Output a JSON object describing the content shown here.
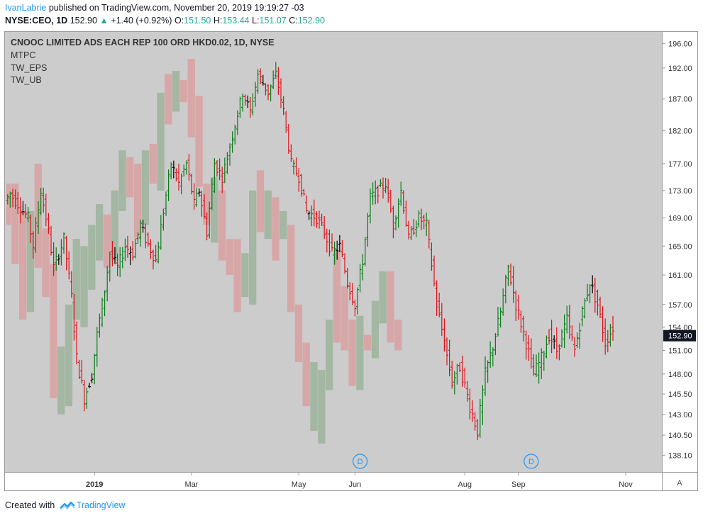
{
  "header": {
    "author": "IvanLabrie",
    "published_text": "published on TradingView.com, November 20, 2019 19:19:27 -03",
    "symbol": "NYSE:CEO, 1D",
    "last_value": "152.90",
    "change_arrow": "▲",
    "change": "+1.40 (+0.92%)",
    "o_label": "O:",
    "o_value": "151.50",
    "h_label": "H:",
    "h_value": "153.44",
    "l_label": "L:",
    "l_value": "151.07",
    "c_label": "C:",
    "c_value": "152.90"
  },
  "legend": {
    "title": "CNOOC LIMITED ADS EACH REP 100 ORD HKD0.02, 1D, NYSE",
    "studies": [
      "MTPC",
      "TW_EPS",
      "TW_UB"
    ]
  },
  "footer": {
    "created_with": "Created with",
    "brand": "TradingView"
  },
  "colors": {
    "background": "#cccccc",
    "up": "#0a7d1a",
    "down": "#e0111b",
    "neutral": "#000000",
    "up_box": "#9bb39b",
    "down_box": "#d8a0a0",
    "price_label_bg": "#131722",
    "event_marker": "#2196f3"
  },
  "chart_data": {
    "type": "ohlc_bar",
    "title": "CNOOC LIMITED ADS EACH REP 100 ORD HKD0.02, 1D, NYSE",
    "last_price_label": "152.90",
    "ylim": [
      136.5,
      197.5
    ],
    "y_scale": "log",
    "y_ticks": [
      196.0,
      192.0,
      187.0,
      182.0,
      177.0,
      173.0,
      169.0,
      165.0,
      161.0,
      157.0,
      154.0,
      151.0,
      148.0,
      145.5,
      143.0,
      140.5,
      138.1
    ],
    "x_ticks": [
      {
        "label": "2019",
        "bar": 34
      },
      {
        "label": "Mar",
        "bar": 72
      },
      {
        "label": "May",
        "bar": 114
      },
      {
        "label": "Jun",
        "bar": 136
      },
      {
        "label": "Aug",
        "bar": 179
      },
      {
        "label": "Sep",
        "bar": 200
      },
      {
        "label": "Nov",
        "bar": 242
      }
    ],
    "event_markers": [
      {
        "label": "D",
        "bar": 138
      },
      {
        "label": "D",
        "bar": 205
      }
    ],
    "right_corner_button": "A",
    "bar_count": 255,
    "segments": [
      {
        "from": 0,
        "to": 2,
        "open": 171.5,
        "close": 172.5
      },
      {
        "from": 2,
        "to": 9,
        "open": 172.5,
        "close": 169.0
      },
      {
        "from": 9,
        "to": 11,
        "open": 169.0,
        "close": 165.0
      },
      {
        "from": 11,
        "to": 14,
        "open": 165.0,
        "close": 173.0
      },
      {
        "from": 14,
        "to": 17,
        "open": 173.0,
        "close": 167.0
      },
      {
        "from": 17,
        "to": 19,
        "open": 167.0,
        "close": 162.0
      },
      {
        "from": 19,
        "to": 23,
        "open": 162.0,
        "close": 166.0
      },
      {
        "from": 23,
        "to": 26,
        "open": 166.0,
        "close": 158.0
      },
      {
        "from": 26,
        "to": 28,
        "open": 158.0,
        "close": 150.0
      },
      {
        "from": 28,
        "to": 31,
        "open": 150.0,
        "close": 145.0
      },
      {
        "from": 31,
        "to": 34,
        "open": 145.0,
        "close": 148.0
      },
      {
        "from": 34,
        "to": 36,
        "open": 148.0,
        "close": 153.0
      },
      {
        "from": 36,
        "to": 39,
        "open": 153.0,
        "close": 159.0
      },
      {
        "from": 39,
        "to": 41,
        "open": 159.0,
        "close": 164.0
      },
      {
        "from": 41,
        "to": 44,
        "open": 164.0,
        "close": 162.0
      },
      {
        "from": 44,
        "to": 47,
        "open": 162.0,
        "close": 165.0
      },
      {
        "from": 47,
        "to": 50,
        "open": 165.0,
        "close": 164.0
      },
      {
        "from": 50,
        "to": 53,
        "open": 164.0,
        "close": 168.0
      },
      {
        "from": 53,
        "to": 55,
        "open": 168.0,
        "close": 166.0
      },
      {
        "from": 55,
        "to": 59,
        "open": 166.0,
        "close": 163.0
      },
      {
        "from": 59,
        "to": 62,
        "open": 163.0,
        "close": 170.0
      },
      {
        "from": 62,
        "to": 65,
        "open": 170.0,
        "close": 177.0
      },
      {
        "from": 65,
        "to": 68,
        "open": 177.0,
        "close": 174.0
      },
      {
        "from": 68,
        "to": 71,
        "open": 174.0,
        "close": 177.0
      },
      {
        "from": 71,
        "to": 74,
        "open": 177.0,
        "close": 171.0
      },
      {
        "from": 74,
        "to": 76,
        "open": 171.0,
        "close": 173.0
      },
      {
        "from": 76,
        "to": 79,
        "open": 173.0,
        "close": 167.0
      },
      {
        "from": 79,
        "to": 82,
        "open": 167.0,
        "close": 177.0
      },
      {
        "from": 82,
        "to": 85,
        "open": 177.0,
        "close": 175.0
      },
      {
        "from": 85,
        "to": 87,
        "open": 175.0,
        "close": 178.0
      },
      {
        "from": 87,
        "to": 90,
        "open": 178.0,
        "close": 183.0
      },
      {
        "from": 90,
        "to": 93,
        "open": 183.0,
        "close": 188.0
      },
      {
        "from": 93,
        "to": 96,
        "open": 188.0,
        "close": 185.0
      },
      {
        "from": 96,
        "to": 99,
        "open": 185.0,
        "close": 191.0
      },
      {
        "from": 99,
        "to": 103,
        "open": 191.0,
        "close": 188.0
      },
      {
        "from": 103,
        "to": 106,
        "open": 188.0,
        "close": 191.0
      },
      {
        "from": 106,
        "to": 109,
        "open": 191.0,
        "close": 185.0
      },
      {
        "from": 109,
        "to": 112,
        "open": 185.0,
        "close": 177.0
      },
      {
        "from": 112,
        "to": 115,
        "open": 177.0,
        "close": 175.0
      },
      {
        "from": 115,
        "to": 118,
        "open": 175.0,
        "close": 170.0
      },
      {
        "from": 118,
        "to": 122,
        "open": 170.0,
        "close": 169.0
      },
      {
        "from": 122,
        "to": 125,
        "open": 169.0,
        "close": 167.0
      },
      {
        "from": 125,
        "to": 128,
        "open": 167.0,
        "close": 164.0
      },
      {
        "from": 128,
        "to": 131,
        "open": 164.0,
        "close": 165.0
      },
      {
        "from": 131,
        "to": 134,
        "open": 165.0,
        "close": 160.0
      },
      {
        "from": 134,
        "to": 137,
        "open": 160.0,
        "close": 157.0
      },
      {
        "from": 137,
        "to": 140,
        "open": 157.0,
        "close": 163.0
      },
      {
        "from": 140,
        "to": 143,
        "open": 163.0,
        "close": 172.0
      },
      {
        "from": 143,
        "to": 146,
        "open": 172.0,
        "close": 173.0
      },
      {
        "from": 146,
        "to": 149,
        "open": 173.0,
        "close": 174.0
      },
      {
        "from": 149,
        "to": 152,
        "open": 174.0,
        "close": 168.0
      },
      {
        "from": 152,
        "to": 155,
        "open": 168.0,
        "close": 173.0
      },
      {
        "from": 155,
        "to": 158,
        "open": 173.0,
        "close": 166.0
      },
      {
        "from": 158,
        "to": 162,
        "open": 166.0,
        "close": 169.0
      },
      {
        "from": 162,
        "to": 165,
        "open": 169.0,
        "close": 168.0
      },
      {
        "from": 165,
        "to": 169,
        "open": 168.0,
        "close": 157.0
      },
      {
        "from": 169,
        "to": 172,
        "open": 157.0,
        "close": 152.0
      },
      {
        "from": 172,
        "to": 175,
        "open": 152.0,
        "close": 147.0
      },
      {
        "from": 175,
        "to": 178,
        "open": 147.0,
        "close": 149.0
      },
      {
        "from": 178,
        "to": 182,
        "open": 149.0,
        "close": 144.0
      },
      {
        "from": 182,
        "to": 185,
        "open": 144.0,
        "close": 141.0
      },
      {
        "from": 185,
        "to": 188,
        "open": 141.0,
        "close": 148.0
      },
      {
        "from": 188,
        "to": 191,
        "open": 148.0,
        "close": 151.5
      },
      {
        "from": 191,
        "to": 194,
        "open": 151.5,
        "close": 156.0
      },
      {
        "from": 194,
        "to": 197,
        "open": 156.0,
        "close": 162.0
      },
      {
        "from": 197,
        "to": 200,
        "open": 162.0,
        "close": 157.0
      },
      {
        "from": 200,
        "to": 204,
        "open": 157.0,
        "close": 152.0
      },
      {
        "from": 204,
        "to": 207,
        "open": 152.0,
        "close": 148.0
      },
      {
        "from": 207,
        "to": 210,
        "open": 148.0,
        "close": 150.0
      },
      {
        "from": 210,
        "to": 213,
        "open": 150.0,
        "close": 153.0
      },
      {
        "from": 213,
        "to": 216,
        "open": 153.0,
        "close": 151.0
      },
      {
        "from": 216,
        "to": 220,
        "open": 151.0,
        "close": 155.0
      },
      {
        "from": 220,
        "to": 223,
        "open": 155.0,
        "close": 151.0
      },
      {
        "from": 223,
        "to": 226,
        "open": 151.0,
        "close": 156.0
      },
      {
        "from": 226,
        "to": 229,
        "open": 156.0,
        "close": 160.0
      },
      {
        "from": 229,
        "to": 232,
        "open": 160.0,
        "close": 157.0
      },
      {
        "from": 232,
        "to": 235,
        "open": 157.0,
        "close": 152.0
      },
      {
        "from": 235,
        "to": 238,
        "open": 152.0,
        "close": 154.0
      }
    ],
    "boxes": [
      {
        "from": 0,
        "to": 2,
        "high": 174.0,
        "low": 168.0,
        "dir": "down"
      },
      {
        "from": 2,
        "to": 5,
        "high": 174.0,
        "low": 162.5,
        "dir": "down"
      },
      {
        "from": 5,
        "to": 8,
        "high": 170.0,
        "low": 155.0,
        "dir": "down"
      },
      {
        "from": 8,
        "to": 11,
        "high": 170.0,
        "low": 156.0,
        "dir": "up"
      },
      {
        "from": 11,
        "to": 14,
        "high": 177.0,
        "low": 162.0,
        "dir": "down"
      },
      {
        "from": 14,
        "to": 17,
        "high": 167.5,
        "low": 158.0,
        "dir": "down"
      },
      {
        "from": 17,
        "to": 20,
        "high": 162.5,
        "low": 145.0,
        "dir": "down"
      },
      {
        "from": 20,
        "to": 23,
        "high": 151.5,
        "low": 143.0,
        "dir": "up"
      },
      {
        "from": 23,
        "to": 26,
        "high": 157.0,
        "low": 144.0,
        "dir": "up"
      },
      {
        "from": 26,
        "to": 29,
        "high": 166.0,
        "low": 155.0,
        "dir": "up"
      },
      {
        "from": 29,
        "to": 32,
        "high": 165.0,
        "low": 154.0,
        "dir": "up"
      },
      {
        "from": 32,
        "to": 35,
        "high": 168.0,
        "low": 159.0,
        "dir": "up"
      },
      {
        "from": 35,
        "to": 38,
        "high": 171.0,
        "low": 163.0,
        "dir": "up"
      },
      {
        "from": 38,
        "to": 41,
        "high": 169.5,
        "low": 162.0,
        "dir": "down"
      },
      {
        "from": 41,
        "to": 44,
        "high": 173.0,
        "low": 163.0,
        "dir": "up"
      },
      {
        "from": 44,
        "to": 47,
        "high": 179.0,
        "low": 170.0,
        "dir": "up"
      },
      {
        "from": 47,
        "to": 50,
        "high": 178.0,
        "low": 172.0,
        "dir": "down"
      },
      {
        "from": 50,
        "to": 53,
        "high": 177.0,
        "low": 166.0,
        "dir": "down"
      },
      {
        "from": 53,
        "to": 56,
        "high": 179.0,
        "low": 168.0,
        "dir": "up"
      },
      {
        "from": 56,
        "to": 59,
        "high": 180.0,
        "low": 174.0,
        "dir": "down"
      },
      {
        "from": 59,
        "to": 62,
        "high": 188.0,
        "low": 173.0,
        "dir": "up"
      },
      {
        "from": 62,
        "to": 65,
        "high": 191.0,
        "low": 183.0,
        "dir": "down"
      },
      {
        "from": 65,
        "to": 68,
        "high": 191.5,
        "low": 185.0,
        "dir": "up"
      },
      {
        "from": 68,
        "to": 71,
        "high": 190.0,
        "low": 186.5,
        "dir": "down"
      },
      {
        "from": 71,
        "to": 74,
        "high": 193.5,
        "low": 181.0,
        "dir": "down"
      },
      {
        "from": 74,
        "to": 77,
        "high": 187.5,
        "low": 173.5,
        "dir": "down"
      },
      {
        "from": 77,
        "to": 80,
        "high": 174.0,
        "low": 168.0,
        "dir": "down"
      },
      {
        "from": 80,
        "to": 83,
        "high": 175.0,
        "low": 165.5,
        "dir": "up"
      },
      {
        "from": 83,
        "to": 86,
        "high": 173.0,
        "low": 163.0,
        "dir": "down"
      },
      {
        "from": 86,
        "to": 89,
        "high": 166.0,
        "low": 161.0,
        "dir": "down"
      },
      {
        "from": 89,
        "to": 92,
        "high": 166.0,
        "low": 156.0,
        "dir": "down"
      },
      {
        "from": 92,
        "to": 95,
        "high": 164.0,
        "low": 158.0,
        "dir": "up"
      },
      {
        "from": 95,
        "to": 98,
        "high": 173.0,
        "low": 157.0,
        "dir": "up"
      },
      {
        "from": 98,
        "to": 101,
        "high": 176.0,
        "low": 167.0,
        "dir": "down"
      },
      {
        "from": 101,
        "to": 104,
        "high": 173.0,
        "low": 166.0,
        "dir": "up"
      },
      {
        "from": 104,
        "to": 107,
        "high": 172.0,
        "low": 163.0,
        "dir": "down"
      },
      {
        "from": 107,
        "to": 110,
        "high": 170.0,
        "low": 166.0,
        "dir": "up"
      },
      {
        "from": 110,
        "to": 113,
        "high": 168.0,
        "low": 156.0,
        "dir": "down"
      },
      {
        "from": 113,
        "to": 116,
        "high": 157.0,
        "low": 149.5,
        "dir": "down"
      },
      {
        "from": 116,
        "to": 119,
        "high": 152.0,
        "low": 144.0,
        "dir": "down"
      },
      {
        "from": 119,
        "to": 122,
        "high": 149.5,
        "low": 141.0,
        "dir": "up"
      },
      {
        "from": 122,
        "to": 125,
        "high": 148.5,
        "low": 139.5,
        "dir": "up"
      },
      {
        "from": 125,
        "to": 128,
        "high": 155.0,
        "low": 146.0,
        "dir": "up"
      },
      {
        "from": 128,
        "to": 131,
        "high": 164.5,
        "low": 152.0,
        "dir": "down"
      },
      {
        "from": 131,
        "to": 134,
        "high": 159.5,
        "low": 151.0,
        "dir": "down"
      },
      {
        "from": 134,
        "to": 137,
        "high": 155.0,
        "low": 146.5,
        "dir": "down"
      },
      {
        "from": 137,
        "to": 140,
        "high": 155.5,
        "low": 146.0,
        "dir": "up"
      },
      {
        "from": 140,
        "to": 143,
        "high": 153.0,
        "low": 151.0,
        "dir": "down"
      },
      {
        "from": 143,
        "to": 146,
        "high": 157.5,
        "low": 150.0,
        "dir": "up"
      },
      {
        "from": 146,
        "to": 149,
        "high": 161.5,
        "low": 154.5,
        "dir": "up"
      },
      {
        "from": 149,
        "to": 152,
        "high": 161.5,
        "low": 152.0,
        "dir": "down"
      },
      {
        "from": 152,
        "to": 155,
        "high": 155.0,
        "low": 151.0,
        "dir": "down"
      }
    ]
  }
}
